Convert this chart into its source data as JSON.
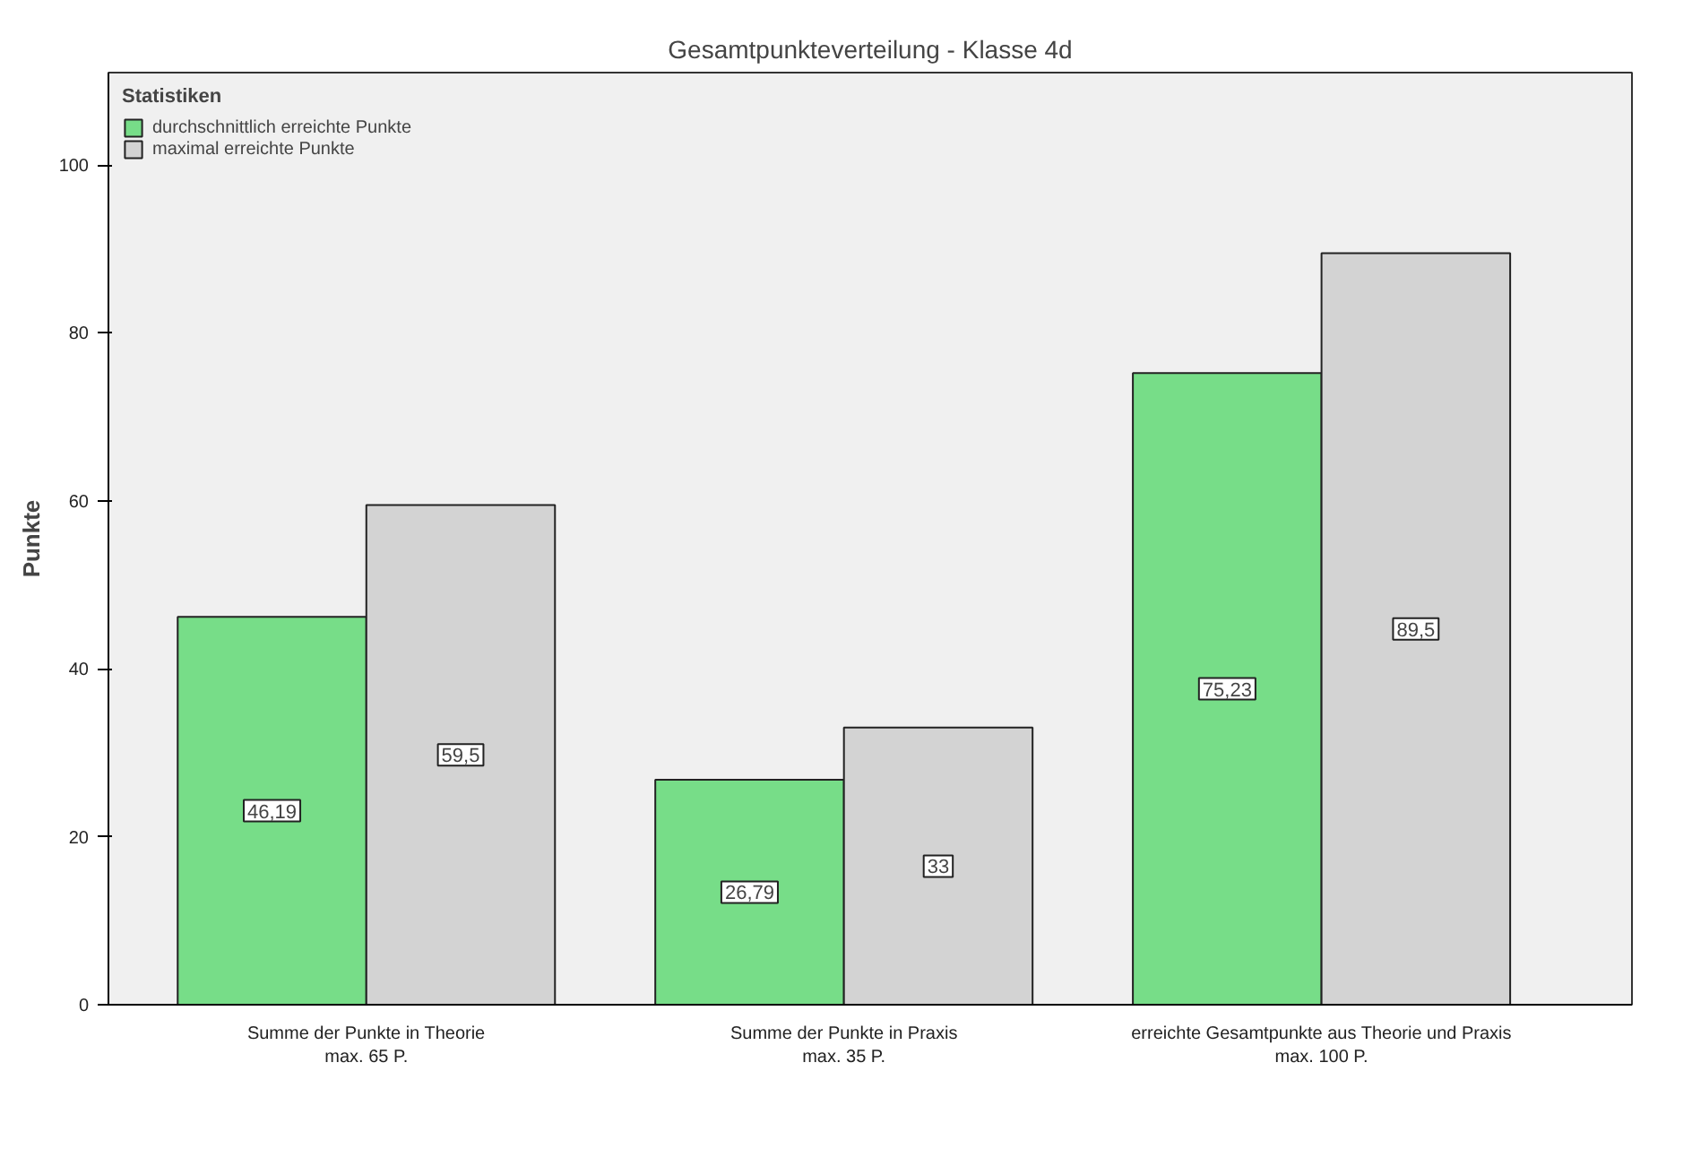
{
  "chart_data": {
    "type": "bar",
    "title": "Gesamtpunkteverteilung - Klasse 4d",
    "ylabel": "Punkte",
    "categories": [
      "Summe der Punkte in Theorie\nmax. 65 P.",
      "Summe der Punkte in Praxis\nmax. 35 P.",
      "erreichte Gesamtpunkte aus Theorie und Praxis\nmax. 100 P."
    ],
    "series": [
      {
        "name": "durchschnittlich erreichte Punkte",
        "color": "#77dd88",
        "values": [
          46.19,
          26.79,
          75.23
        ],
        "value_labels": [
          "46,19",
          "26,79",
          "75,23"
        ]
      },
      {
        "name": "maximal erreichte Punkte",
        "color": "#d3d3d3",
        "values": [
          59.5,
          33,
          89.5
        ],
        "value_labels": [
          "59,5",
          "33",
          "89,5"
        ]
      }
    ],
    "legend_title": "Statistiken",
    "legend": "top left",
    "grid": false,
    "ylim": [
      0,
      111
    ],
    "yticks": [
      0,
      20,
      40,
      60,
      80,
      100
    ]
  }
}
